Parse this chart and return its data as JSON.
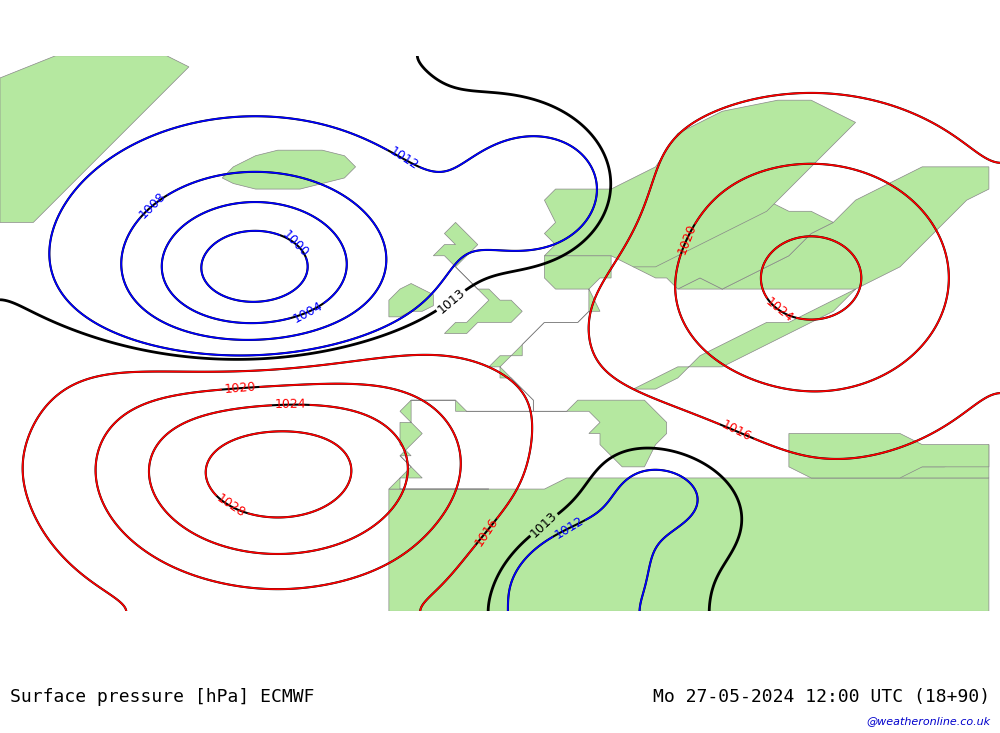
{
  "title_left": "Surface pressure [hPa] ECMWF",
  "title_right": "Mo 27-05-2024 12:00 UTC (18+90)",
  "watermark": "@weatheronline.co.uk",
  "bottom_bar_color": "#e8e8e8",
  "land_color": "#b5e8a0",
  "sea_color": "#d8d8d8",
  "mountain_color": "#c0c0c0",
  "contour_colors": {
    "black": "#000000",
    "blue": "#0000ff",
    "red": "#ff0000"
  },
  "figsize": [
    10,
    7.33
  ],
  "dpi": 100
}
